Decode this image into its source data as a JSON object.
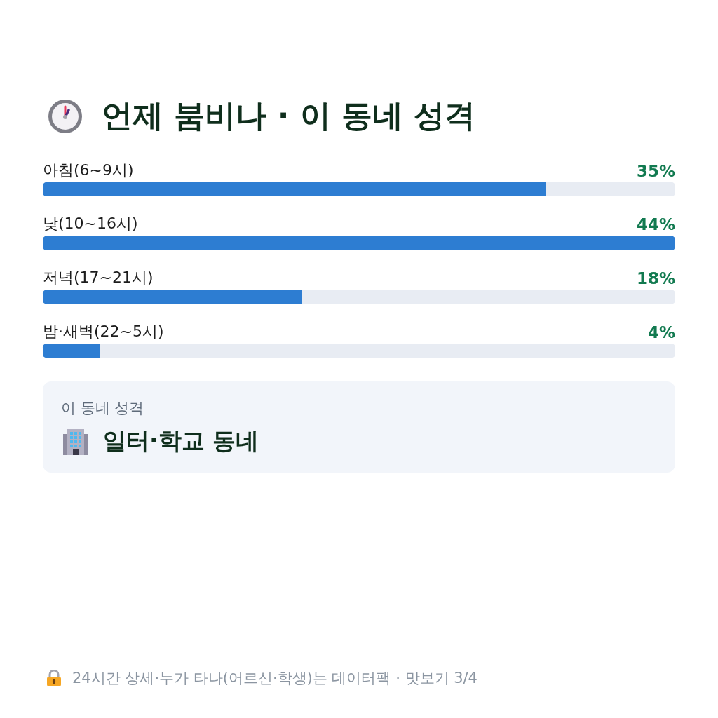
{
  "chart_data": {
    "type": "bar",
    "orientation": "horizontal",
    "title": "언제 붐비나 · 이 동네 성격",
    "categories": [
      "아침(6~9시)",
      "낮(10~16시)",
      "저녁(17~21시)",
      "밤·새벽(22~5시)"
    ],
    "values": [
      35,
      44,
      18,
      4
    ],
    "value_labels": [
      "35%",
      "44%",
      "18%",
      "4%"
    ],
    "color": "#2d7dd2",
    "annotations": [
      "이 동네 성격",
      "일터·학교 동네",
      "24시간 상세·누가 타나(어르신·학생)는 데이터팩 · 맛보기 3/4"
    ]
  }
}
